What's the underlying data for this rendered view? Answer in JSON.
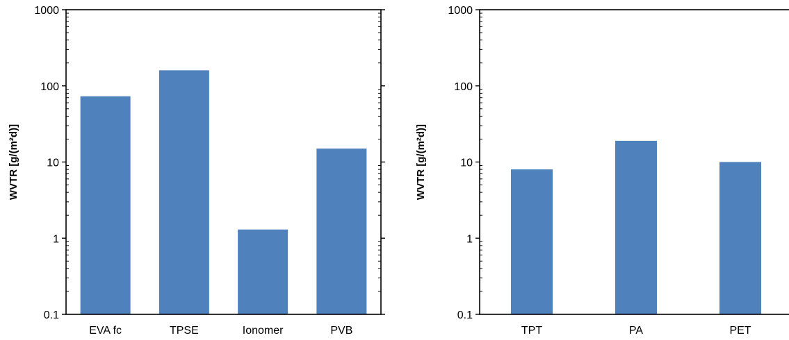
{
  "chart_data": [
    {
      "type": "bar",
      "title": "",
      "xlabel": "",
      "ylabel": "WVTR [g/(m²d)]",
      "yscale": "log",
      "ylim": [
        0.1,
        1000
      ],
      "yticks": [
        "0.1",
        "1",
        "10",
        "100",
        "1000"
      ],
      "grid": false,
      "legend": "none",
      "bar_color": "#4f81bd",
      "categories": [
        "EVA fc",
        "TPSE",
        "Ionomer",
        "PVB"
      ],
      "values": [
        73,
        160,
        1.3,
        15
      ]
    },
    {
      "type": "bar",
      "title": "",
      "xlabel": "",
      "ylabel": "WVTR [g/(m²d)]",
      "yscale": "log",
      "ylim": [
        0.1,
        1000
      ],
      "yticks": [
        "0.1",
        "1",
        "10",
        "100",
        "1000"
      ],
      "grid": false,
      "legend": "none",
      "bar_color": "#4f81bd",
      "categories": [
        "TPT",
        "PA",
        "PET"
      ],
      "values": [
        8,
        19,
        10
      ]
    }
  ]
}
